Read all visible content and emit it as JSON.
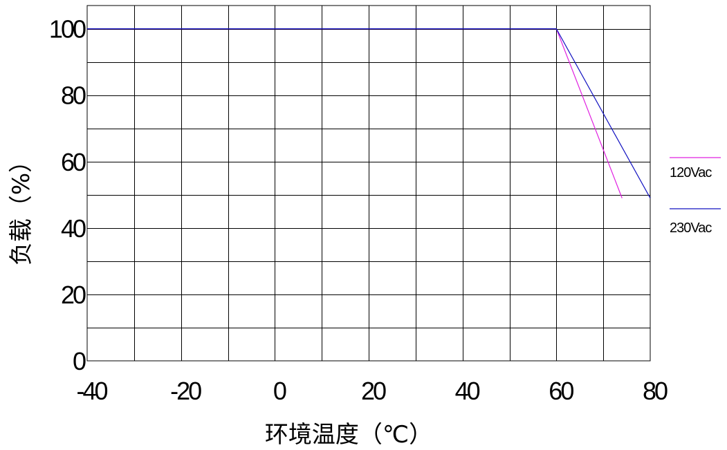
{
  "chart_data": {
    "type": "line",
    "title": "",
    "xlabel": "环境温度（℃）",
    "ylabel": "负载（%）",
    "xlim": [
      -40,
      80
    ],
    "ylim": [
      0,
      100
    ],
    "x_major_ticks": [
      -40,
      -20,
      0,
      20,
      40,
      60,
      80
    ],
    "x_tick_labels": [
      "-40",
      "-20",
      "0",
      "20",
      "40",
      "60",
      "80"
    ],
    "y_major_ticks": [
      0,
      20,
      40,
      60,
      80,
      100
    ],
    "y_tick_labels": [
      "0",
      "20",
      "40",
      "60",
      "80",
      "100"
    ],
    "x_grid_step": 10,
    "y_grid_step": 10,
    "grid": true,
    "legend_position": "right",
    "series": [
      {
        "name": "120Vac",
        "color": "#e020e0",
        "points": [
          [
            -40,
            100
          ],
          [
            60,
            100
          ],
          [
            74,
            49
          ]
        ]
      },
      {
        "name": "230Vac",
        "color": "#1010c0",
        "points": [
          [
            -40,
            100
          ],
          [
            60,
            100
          ],
          [
            80,
            49
          ]
        ]
      }
    ]
  }
}
